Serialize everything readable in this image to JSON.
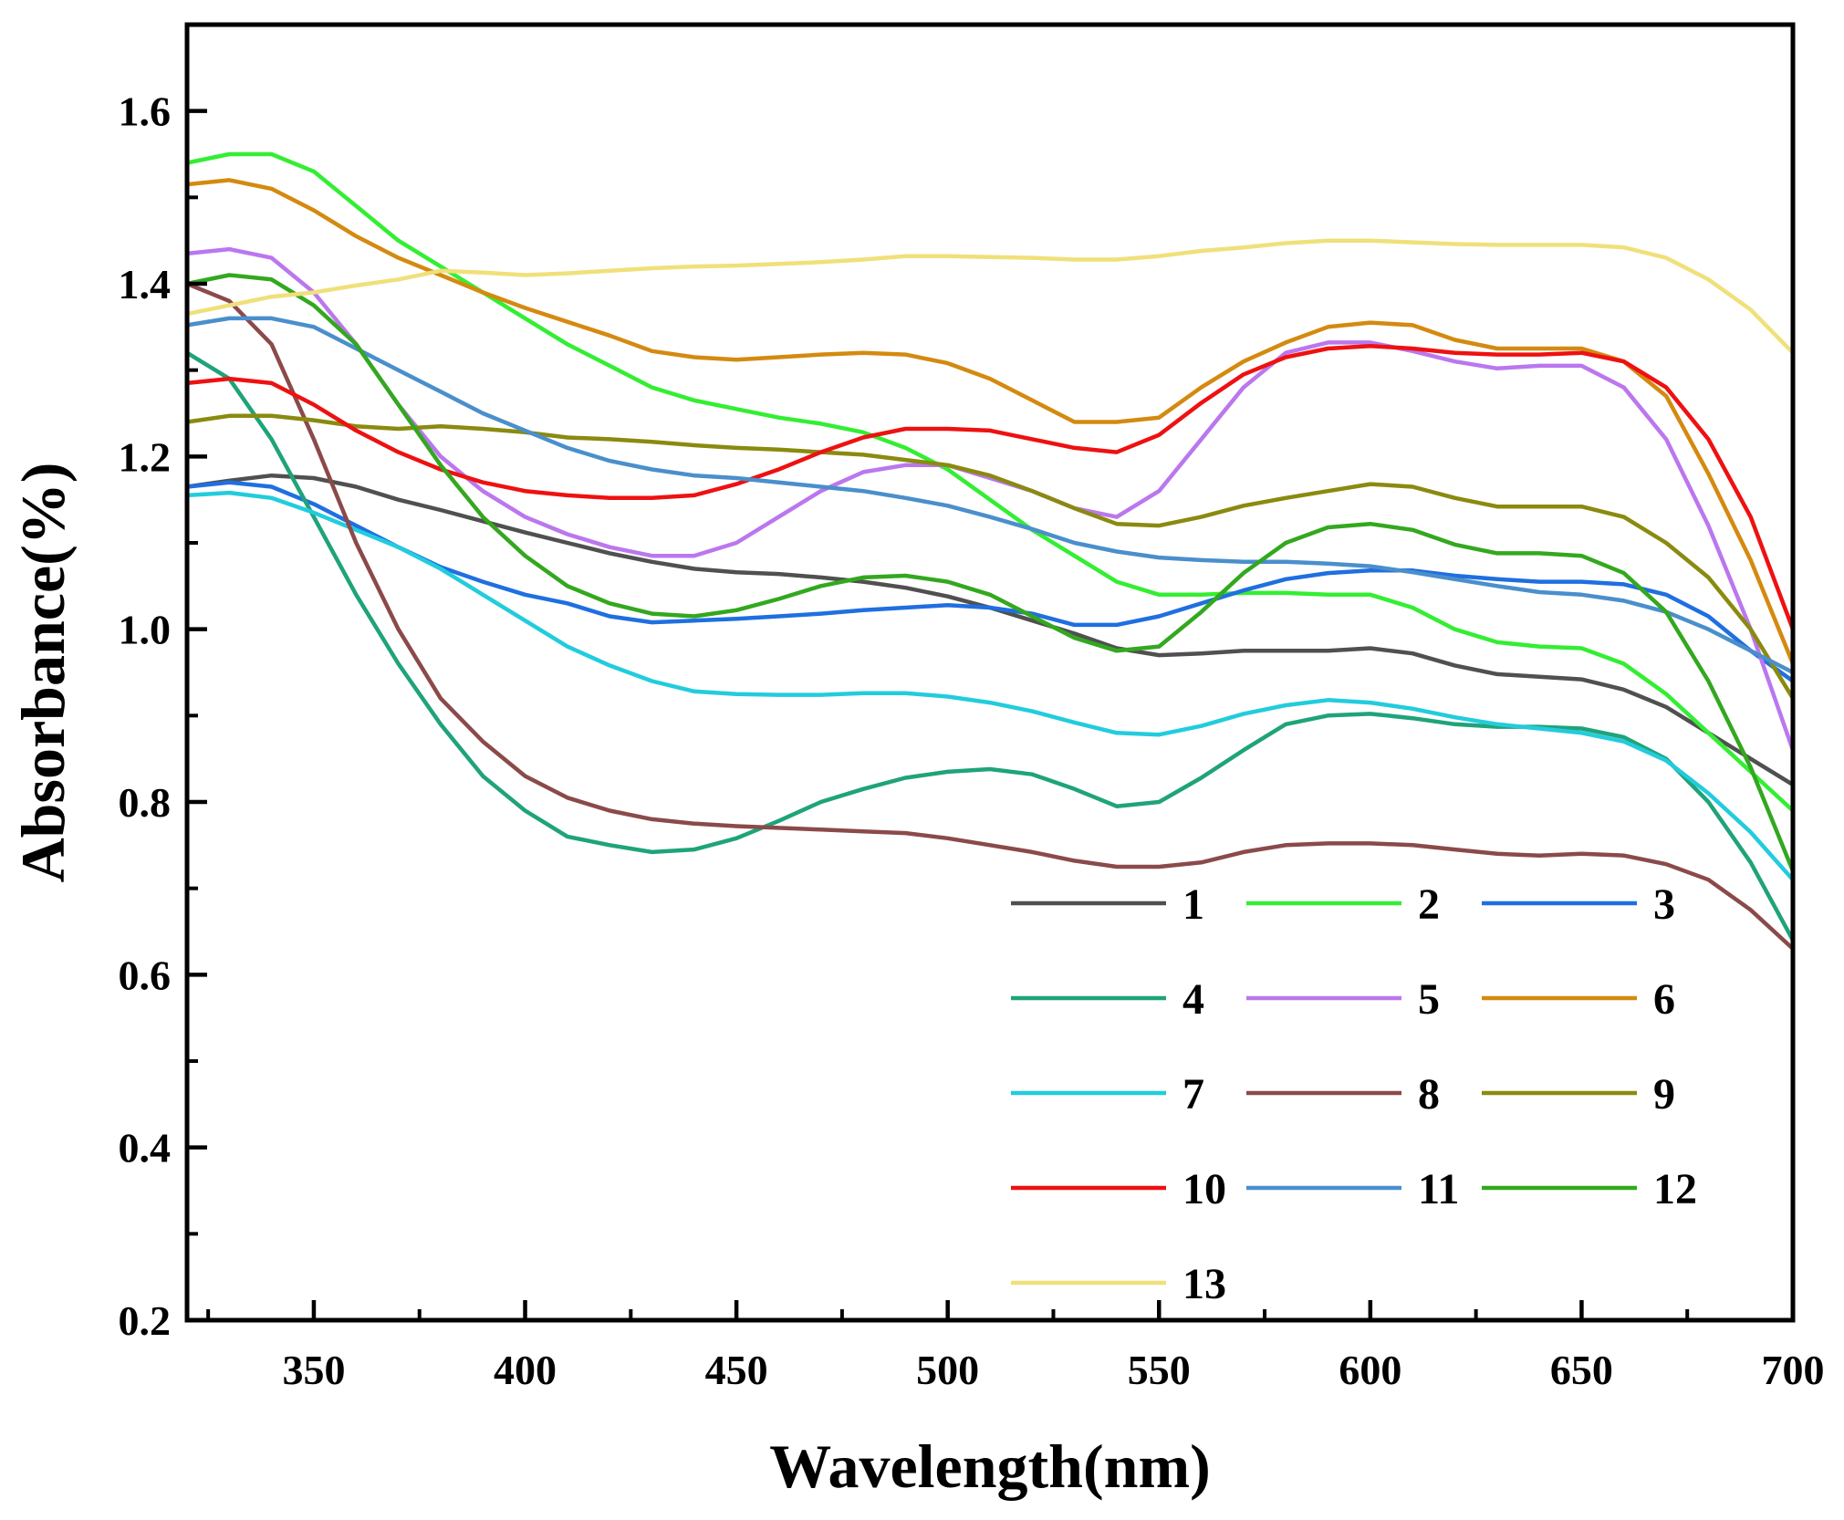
{
  "chart_data": {
    "type": "line",
    "title": "",
    "xlabel": "Wavelength(nm)",
    "ylabel": "Absorbance(%)",
    "xlim": [
      320,
      700
    ],
    "ylim": [
      0.2,
      1.7
    ],
    "grid": false,
    "legend_position": "bottom-right",
    "legend_columns": 3,
    "x_ticks": [
      350,
      400,
      450,
      500,
      550,
      600,
      650,
      700
    ],
    "x_tick_labels": [
      "350",
      "400",
      "450",
      "500",
      "550",
      "600",
      "650",
      "700"
    ],
    "y_ticks": [
      0.2,
      0.4,
      0.6,
      0.8,
      1.0,
      1.2,
      1.4,
      1.6
    ],
    "y_tick_labels": [
      "0.2",
      "0.4",
      "0.6",
      "0.8",
      "1.0",
      "1.2",
      "1.4",
      "1.6"
    ],
    "x": [
      320,
      330,
      340,
      350,
      360,
      370,
      380,
      390,
      400,
      410,
      420,
      430,
      440,
      450,
      460,
      470,
      480,
      490,
      500,
      510,
      520,
      530,
      540,
      550,
      560,
      570,
      580,
      590,
      600,
      610,
      620,
      630,
      640,
      650,
      660,
      670,
      680,
      690,
      700
    ],
    "series": [
      {
        "name": "1",
        "color": "#505050",
        "values": [
          1.165,
          1.172,
          1.178,
          1.175,
          1.165,
          1.15,
          1.138,
          1.125,
          1.112,
          1.1,
          1.088,
          1.078,
          1.07,
          1.066,
          1.064,
          1.06,
          1.055,
          1.048,
          1.038,
          1.025,
          1.01,
          0.995,
          0.978,
          0.97,
          0.972,
          0.975,
          0.975,
          0.975,
          0.978,
          0.972,
          0.958,
          0.948,
          0.945,
          0.942,
          0.93,
          0.91,
          0.88,
          0.85,
          0.82
        ]
      },
      {
        "name": "2",
        "color": "#33EE33",
        "values": [
          1.54,
          1.55,
          1.55,
          1.53,
          1.49,
          1.45,
          1.42,
          1.39,
          1.36,
          1.33,
          1.305,
          1.28,
          1.265,
          1.255,
          1.245,
          1.238,
          1.228,
          1.21,
          1.185,
          1.15,
          1.115,
          1.085,
          1.055,
          1.04,
          1.04,
          1.042,
          1.042,
          1.04,
          1.04,
          1.025,
          1.0,
          0.985,
          0.98,
          0.978,
          0.96,
          0.925,
          0.88,
          0.835,
          0.79
        ]
      },
      {
        "name": "3",
        "color": "#1F6FE0",
        "values": [
          1.165,
          1.17,
          1.165,
          1.145,
          1.12,
          1.095,
          1.072,
          1.055,
          1.04,
          1.03,
          1.015,
          1.008,
          1.01,
          1.012,
          1.015,
          1.018,
          1.022,
          1.025,
          1.028,
          1.025,
          1.018,
          1.005,
          1.005,
          1.015,
          1.03,
          1.045,
          1.058,
          1.065,
          1.068,
          1.068,
          1.062,
          1.058,
          1.055,
          1.055,
          1.052,
          1.04,
          1.015,
          0.975,
          0.94
        ]
      },
      {
        "name": "4",
        "color": "#1FA37A",
        "values": [
          1.32,
          1.29,
          1.22,
          1.13,
          1.04,
          0.96,
          0.89,
          0.83,
          0.79,
          0.76,
          0.75,
          0.742,
          0.745,
          0.758,
          0.778,
          0.8,
          0.815,
          0.828,
          0.835,
          0.838,
          0.832,
          0.815,
          0.795,
          0.8,
          0.828,
          0.86,
          0.89,
          0.9,
          0.902,
          0.897,
          0.89,
          0.887,
          0.887,
          0.885,
          0.875,
          0.85,
          0.8,
          0.73,
          0.64
        ]
      },
      {
        "name": "5",
        "color": "#BB77EE",
        "values": [
          1.435,
          1.44,
          1.43,
          1.39,
          1.33,
          1.26,
          1.2,
          1.16,
          1.13,
          1.11,
          1.095,
          1.085,
          1.085,
          1.1,
          1.13,
          1.16,
          1.182,
          1.19,
          1.19,
          1.175,
          1.16,
          1.14,
          1.13,
          1.16,
          1.22,
          1.28,
          1.32,
          1.332,
          1.332,
          1.322,
          1.31,
          1.302,
          1.305,
          1.305,
          1.28,
          1.22,
          1.12,
          1.0,
          0.86
        ]
      },
      {
        "name": "6",
        "color": "#D48A10",
        "values": [
          1.515,
          1.52,
          1.51,
          1.485,
          1.455,
          1.43,
          1.41,
          1.39,
          1.372,
          1.356,
          1.34,
          1.322,
          1.315,
          1.312,
          1.315,
          1.318,
          1.32,
          1.318,
          1.308,
          1.29,
          1.265,
          1.24,
          1.24,
          1.245,
          1.28,
          1.31,
          1.332,
          1.35,
          1.355,
          1.352,
          1.335,
          1.325,
          1.325,
          1.325,
          1.31,
          1.27,
          1.18,
          1.08,
          0.96
        ]
      },
      {
        "name": "7",
        "color": "#22CCDD",
        "values": [
          1.155,
          1.158,
          1.152,
          1.135,
          1.115,
          1.095,
          1.07,
          1.04,
          1.01,
          0.98,
          0.958,
          0.94,
          0.928,
          0.925,
          0.924,
          0.924,
          0.926,
          0.926,
          0.922,
          0.915,
          0.905,
          0.892,
          0.88,
          0.878,
          0.888,
          0.902,
          0.912,
          0.918,
          0.915,
          0.908,
          0.898,
          0.89,
          0.885,
          0.88,
          0.87,
          0.848,
          0.81,
          0.765,
          0.71
        ]
      },
      {
        "name": "8",
        "color": "#8B4A4A",
        "values": [
          1.4,
          1.38,
          1.33,
          1.22,
          1.1,
          1.0,
          0.92,
          0.87,
          0.83,
          0.805,
          0.79,
          0.78,
          0.775,
          0.772,
          0.77,
          0.768,
          0.766,
          0.764,
          0.758,
          0.75,
          0.742,
          0.732,
          0.725,
          0.725,
          0.73,
          0.742,
          0.75,
          0.752,
          0.752,
          0.75,
          0.745,
          0.74,
          0.738,
          0.74,
          0.738,
          0.728,
          0.71,
          0.675,
          0.63
        ]
      },
      {
        "name": "9",
        "color": "#8A8A10",
        "values": [
          1.24,
          1.247,
          1.247,
          1.242,
          1.235,
          1.232,
          1.235,
          1.232,
          1.228,
          1.222,
          1.22,
          1.217,
          1.213,
          1.21,
          1.208,
          1.205,
          1.202,
          1.196,
          1.19,
          1.178,
          1.16,
          1.14,
          1.122,
          1.12,
          1.13,
          1.143,
          1.152,
          1.16,
          1.168,
          1.165,
          1.152,
          1.142,
          1.142,
          1.142,
          1.13,
          1.1,
          1.06,
          1.0,
          0.92
        ]
      },
      {
        "name": "10",
        "color": "#EE1111",
        "values": [
          1.285,
          1.29,
          1.285,
          1.26,
          1.23,
          1.205,
          1.185,
          1.17,
          1.16,
          1.155,
          1.152,
          1.152,
          1.155,
          1.168,
          1.185,
          1.205,
          1.222,
          1.232,
          1.232,
          1.23,
          1.22,
          1.21,
          1.205,
          1.225,
          1.262,
          1.295,
          1.315,
          1.325,
          1.328,
          1.325,
          1.32,
          1.318,
          1.318,
          1.32,
          1.31,
          1.28,
          1.22,
          1.13,
          1.0
        ]
      },
      {
        "name": "11",
        "color": "#4A8FCC",
        "values": [
          1.352,
          1.36,
          1.36,
          1.35,
          1.325,
          1.3,
          1.275,
          1.25,
          1.23,
          1.21,
          1.195,
          1.185,
          1.178,
          1.175,
          1.17,
          1.165,
          1.16,
          1.152,
          1.143,
          1.13,
          1.116,
          1.1,
          1.09,
          1.083,
          1.08,
          1.078,
          1.078,
          1.076,
          1.073,
          1.066,
          1.058,
          1.05,
          1.043,
          1.04,
          1.033,
          1.02,
          1.0,
          0.975,
          0.95
        ]
      },
      {
        "name": "12",
        "color": "#33A81F",
        "values": [
          1.4,
          1.41,
          1.405,
          1.375,
          1.33,
          1.26,
          1.19,
          1.13,
          1.085,
          1.05,
          1.03,
          1.018,
          1.015,
          1.022,
          1.035,
          1.05,
          1.06,
          1.062,
          1.055,
          1.04,
          1.015,
          0.99,
          0.975,
          0.98,
          1.02,
          1.065,
          1.1,
          1.118,
          1.122,
          1.115,
          1.098,
          1.088,
          1.088,
          1.085,
          1.065,
          1.02,
          0.94,
          0.84,
          0.72
        ]
      },
      {
        "name": "13",
        "color": "#F0E07A",
        "values": [
          1.365,
          1.375,
          1.385,
          1.39,
          1.398,
          1.405,
          1.415,
          1.413,
          1.41,
          1.412,
          1.415,
          1.418,
          1.42,
          1.421,
          1.423,
          1.425,
          1.428,
          1.432,
          1.432,
          1.431,
          1.43,
          1.428,
          1.428,
          1.432,
          1.438,
          1.442,
          1.447,
          1.45,
          1.45,
          1.448,
          1.446,
          1.445,
          1.445,
          1.445,
          1.442,
          1.43,
          1.405,
          1.37,
          1.32
        ]
      }
    ]
  }
}
